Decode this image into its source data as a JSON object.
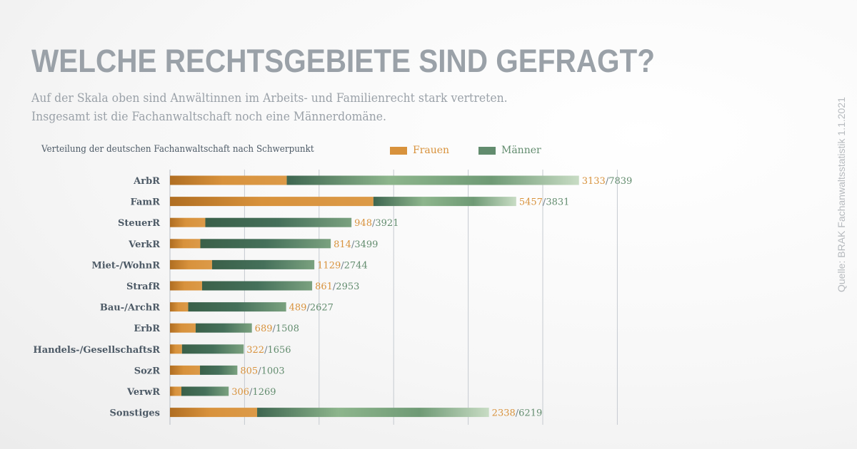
{
  "header": {
    "title": "WELCHE RECHTSGEBIETE SIND GEFRAGT?",
    "subtitle_line1": "Auf der Skala oben sind Anwältinnen im Arbeits- und Familienrecht stark vertreten.",
    "subtitle_line2": "Insgesamt ist die Fachanwaltschaft noch eine Männerdomäne."
  },
  "source": "Quelle: BRAK Fachanwaltsstatistik 1.1.2021",
  "colors": {
    "frauen": "#d8923c",
    "maenner": "#3e6650",
    "maenner_light": "#8db58c",
    "label_text": "#4d5a66",
    "grid": "#c5cad0"
  },
  "chart_data": {
    "type": "bar",
    "orientation": "horizontal",
    "stacked": true,
    "title": "Verteilung der deutschen Fachanwaltschaft nach Schwerpunkt",
    "xlabel": "",
    "ylabel": "",
    "xlim": [
      0,
      12000
    ],
    "grid": true,
    "legend_position": "top",
    "categories": [
      "ArbR",
      "FamR",
      "SteuerR",
      "VerkR",
      "Miet-/WohnR",
      "StrafR",
      "Bau-/ArchR",
      "ErbR",
      "Handels-/GesellschaftsR",
      "SozR",
      "VerwR",
      "Sonstiges"
    ],
    "series": [
      {
        "name": "Frauen",
        "values": [
          3133,
          5457,
          948,
          814,
          1129,
          861,
          489,
          689,
          322,
          805,
          306,
          2338
        ]
      },
      {
        "name": "Männer",
        "values": [
          7839,
          3831,
          3921,
          3499,
          2744,
          2953,
          2627,
          1508,
          1656,
          1003,
          1269,
          6219
        ]
      }
    ]
  }
}
